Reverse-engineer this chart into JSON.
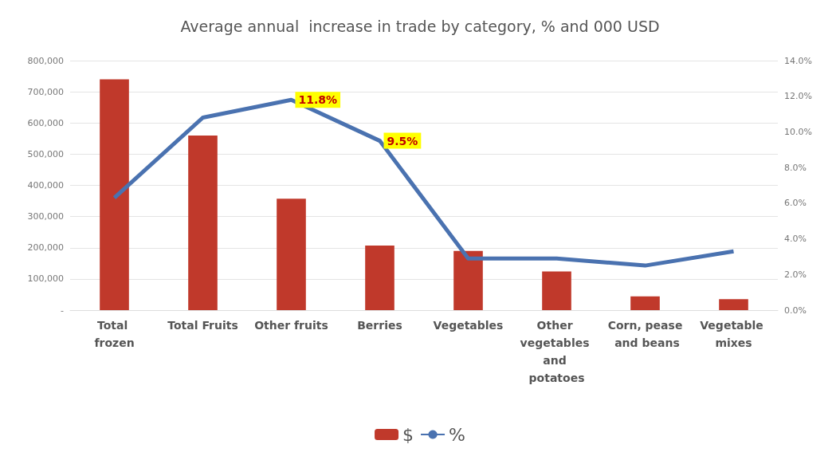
{
  "chart_data": {
    "type": "bar",
    "title": "Average annual  increase in trade by category, % and 000 USD",
    "categories": [
      "Total frozen",
      "Total Fruits",
      "Other fruits",
      "Berries",
      "Vegetables",
      "Other vegetables and potatoes",
      "Corn, pease and beans",
      "Vegetable mixes"
    ],
    "series": [
      {
        "name": "$",
        "color": "#c0392b",
        "values": [
          740000,
          560000,
          357000,
          207000,
          190000,
          124000,
          44000,
          35000
        ]
      },
      {
        "name": "%",
        "type": "line",
        "axis": "y2",
        "color": "#4a72b0",
        "values": [
          6.3,
          10.8,
          11.8,
          9.5,
          2.9,
          2.9,
          2.5,
          3.3
        ],
        "value_labels": [
          null,
          null,
          "11.8%",
          "9.5%",
          null,
          null,
          null,
          null
        ]
      }
    ],
    "ylim": [
      0,
      800000
    ],
    "yticks": [
      {
        "value": 0,
        "label": "-"
      },
      {
        "value": 100000,
        "label": "100,000"
      },
      {
        "value": 200000,
        "label": "200,000"
      },
      {
        "value": 300000,
        "label": "300,000"
      },
      {
        "value": 400000,
        "label": "400,000"
      },
      {
        "value": 500000,
        "label": "500,000"
      },
      {
        "value": 600000,
        "label": "600,000"
      },
      {
        "value": 700000,
        "label": "700,000"
      },
      {
        "value": 800000,
        "label": "800,000"
      }
    ],
    "y2lim": [
      0,
      14
    ],
    "y2ticks": [
      {
        "value": 0,
        "label": "0.0%"
      },
      {
        "value": 2,
        "label": "2.0%"
      },
      {
        "value": 4,
        "label": "4.0%"
      },
      {
        "value": 6,
        "label": "6.0%"
      },
      {
        "value": 8,
        "label": "8.0%"
      },
      {
        "value": 10,
        "label": "10.0%"
      },
      {
        "value": 12,
        "label": "12.0%"
      },
      {
        "value": 14,
        "label": "14.0%"
      }
    ],
    "grid": "y",
    "legend": "bottom",
    "marker": "none"
  }
}
